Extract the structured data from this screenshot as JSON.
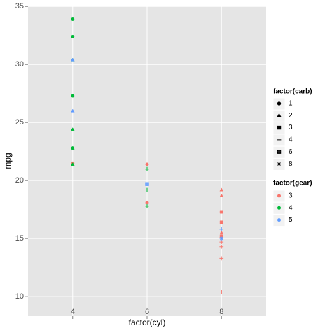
{
  "chart_data": {
    "type": "scatter",
    "xlabel": "factor(cyl)",
    "ylabel": "mpg",
    "categories": [
      "4",
      "6",
      "8"
    ],
    "x": [
      "6",
      "6",
      "4",
      "6",
      "8",
      "6",
      "8",
      "4",
      "4",
      "6",
      "6",
      "8",
      "8",
      "8",
      "8",
      "8",
      "8",
      "4",
      "4",
      "4",
      "4",
      "8",
      "8",
      "8",
      "8",
      "4",
      "4",
      "4",
      "8",
      "6",
      "8",
      "4"
    ],
    "values": [
      21,
      21,
      22.8,
      21.4,
      18.7,
      18.1,
      14.3,
      24.4,
      22.8,
      19.2,
      17.8,
      16.4,
      17.3,
      15.2,
      10.4,
      10.4,
      14.7,
      32.4,
      30.4,
      33.9,
      21.5,
      15.5,
      15.2,
      13.3,
      19.2,
      27.3,
      26,
      30.4,
      15.8,
      19.7,
      15,
      21.4
    ],
    "carb": [
      "4",
      "4",
      "1",
      "1",
      "2",
      "1",
      "4",
      "2",
      "2",
      "4",
      "4",
      "3",
      "3",
      "3",
      "4",
      "4",
      "4",
      "1",
      "2",
      "1",
      "1",
      "2",
      "2",
      "4",
      "2",
      "1",
      "2",
      "2",
      "4",
      "6",
      "8",
      "2"
    ],
    "gear": [
      "4",
      "4",
      "4",
      "3",
      "3",
      "3",
      "3",
      "4",
      "4",
      "4",
      "4",
      "3",
      "3",
      "3",
      "3",
      "3",
      "3",
      "4",
      "4",
      "4",
      "3",
      "3",
      "3",
      "3",
      "3",
      "4",
      "5",
      "5",
      "5",
      "5",
      "5",
      "4"
    ],
    "ylim": [
      9.225,
      35.075
    ],
    "yticks": [
      10,
      15,
      20,
      25,
      30,
      35
    ],
    "grid": true,
    "shape_legend": {
      "title": "factor(carb)",
      "labels": [
        "1",
        "2",
        "3",
        "4",
        "6",
        "8"
      ],
      "shapes": [
        "circle",
        "triangle",
        "square",
        "plus",
        "square-cross",
        "asterisk"
      ]
    },
    "color_legend": {
      "title": "factor(gear)",
      "labels": [
        "3",
        "4",
        "5"
      ],
      "colors": [
        "#F8766D",
        "#00BA38",
        "#619CFF"
      ]
    }
  }
}
